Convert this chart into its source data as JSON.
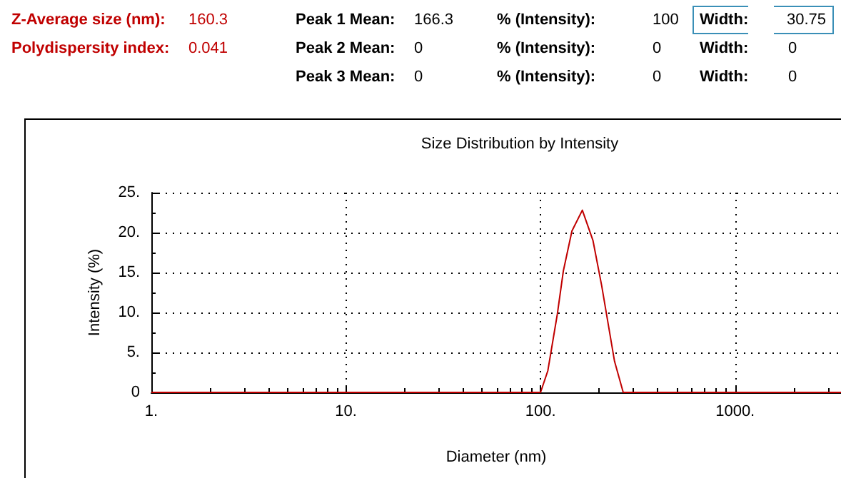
{
  "chart_data": {
    "type": "line",
    "title": "Size Distribution by Intensity",
    "xlabel": "Diameter (nm)",
    "ylabel": "Intensity (%)",
    "annotations": [
      "Z-Average size (nm):",
      "160.3",
      "Peak 1 Mean:",
      "166.3",
      "% (Intensity):",
      "100",
      "Width:",
      "30.75",
      "Polydispersity index:",
      "0.041",
      "Peak 2 Mean:",
      "0",
      "% (Intensity):",
      "0",
      "Width:",
      "0",
      "Peak 3 Mean:",
      "0",
      "% (Intensity):",
      "0",
      "Width:",
      "0"
    ],
    "x": [
      1,
      10,
      100,
      109,
      122,
      131,
      145,
      164,
      186,
      206,
      240,
      266,
      1000,
      3500
    ],
    "series": [
      {
        "color": "#c00000",
        "values": [
          0,
          0,
          0,
          2.7,
          9.8,
          15.2,
          20.2,
          22.8,
          19.0,
          13.4,
          3.9,
          0,
          0,
          0
        ]
      }
    ],
    "log": "x",
    "xlim": [
      1,
      3500
    ],
    "xticks": [
      {
        "value": 1,
        "label": "1."
      },
      {
        "value": 10,
        "label": "10."
      },
      {
        "value": 100,
        "label": "100."
      },
      {
        "value": 1000,
        "label": "1000."
      }
    ],
    "ylim": [
      0,
      25
    ],
    "yticks": [
      0,
      {
        "value": 5,
        "label": "5."
      },
      {
        "value": 10,
        "label": "10."
      },
      {
        "value": 15,
        "label": "15."
      },
      {
        "value": 20,
        "label": "20."
      },
      {
        "value": 25,
        "label": "25."
      }
    ],
    "grid": true,
    "marker": "none",
    "line_style": "solid"
  }
}
